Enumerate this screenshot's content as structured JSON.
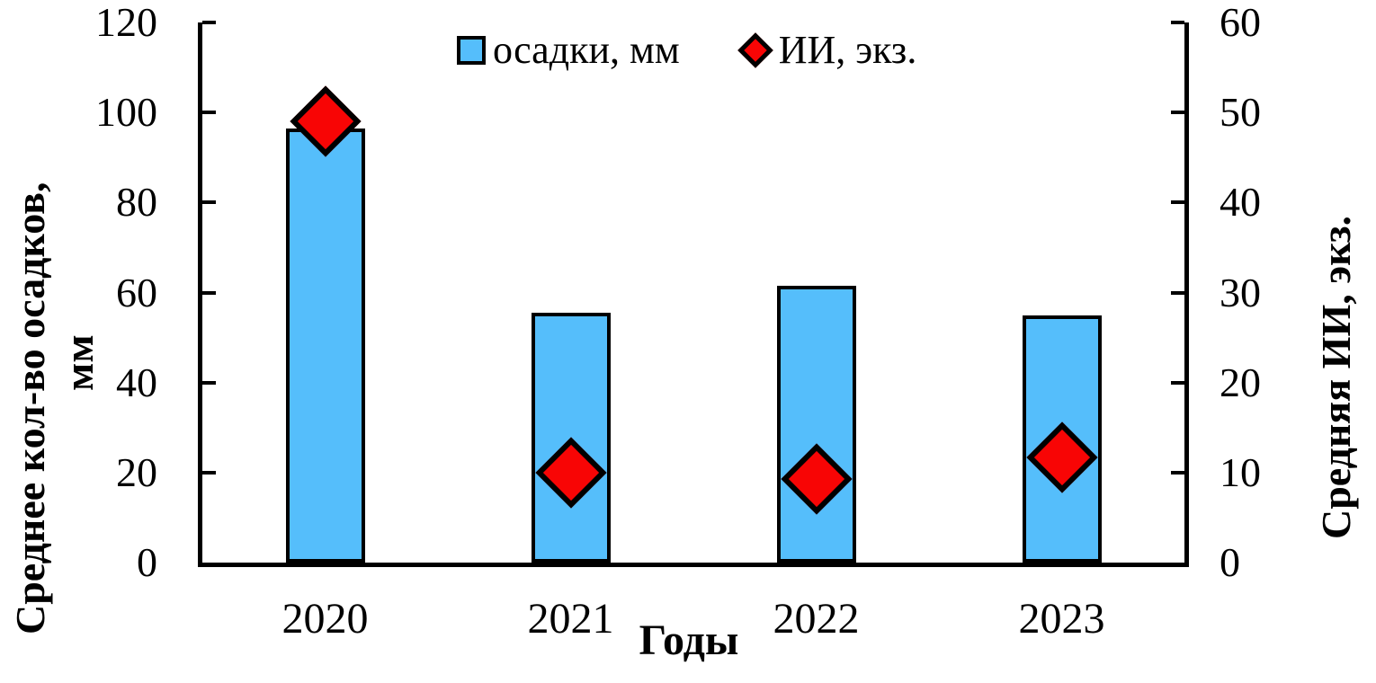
{
  "chart_data": {
    "type": "bar",
    "title": "",
    "categories": [
      "2020",
      "2021",
      "2022",
      "2023"
    ],
    "series": [
      {
        "name": "осадки, мм",
        "render": "bar",
        "axis": "left",
        "color": "#55BEFB",
        "values": [
          96.5,
          55.5,
          61.5,
          55
        ]
      },
      {
        "name": "ИИ, экз.",
        "render": "scatter-diamond",
        "axis": "right",
        "color": "#F80505",
        "values": [
          49,
          10,
          9.3,
          11.7
        ]
      }
    ],
    "left_axis": {
      "title": "Среднее кол-во осадков, мм",
      "title_line1": "Среднее кол-во осадков,",
      "title_line2": "мм",
      "min": 0,
      "max": 120,
      "step": 20,
      "ticks": [
        0,
        20,
        40,
        60,
        80,
        100,
        120
      ]
    },
    "right_axis": {
      "title": "Средняя ИИ, экз.",
      "min": 0,
      "max": 60,
      "step": 10,
      "ticks": [
        0,
        10,
        20,
        30,
        40,
        50,
        60
      ]
    },
    "x_axis": {
      "title": "Годы"
    },
    "legend": [
      {
        "label": "осадки, мм",
        "marker": "square",
        "color": "#55BEFB"
      },
      {
        "label": "ИИ, экз.",
        "marker": "diamond",
        "color": "#F80505"
      }
    ],
    "legend_position": "top-center",
    "grid": false,
    "colors": {
      "bar_fill": "#55BEFB",
      "diamond_fill": "#F80505",
      "axis_line": "#000000",
      "background": "#FFFFFF"
    }
  }
}
